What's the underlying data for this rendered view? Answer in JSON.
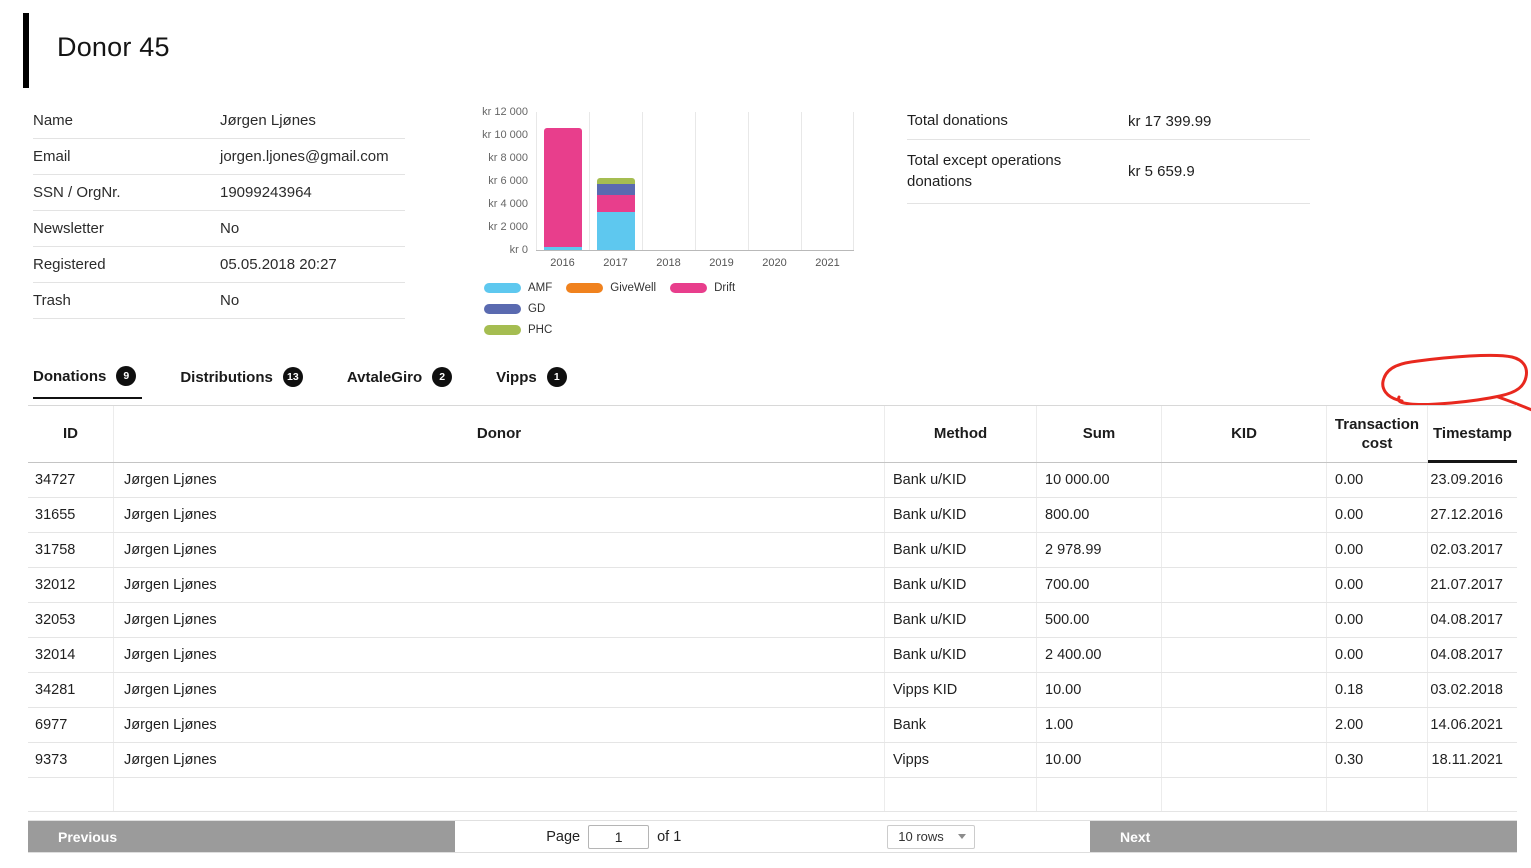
{
  "page": {
    "title": "Donor 45"
  },
  "info": {
    "rows": [
      {
        "label": "Name",
        "value": "Jørgen Ljønes"
      },
      {
        "label": "Email",
        "value": "jorgen.ljones@gmail.com"
      },
      {
        "label": "SSN / OrgNr.",
        "value": "19099243964"
      },
      {
        "label": "Newsletter",
        "value": "No"
      },
      {
        "label": "Registered",
        "value": "05.05.2018 20:27"
      },
      {
        "label": "Trash",
        "value": "No"
      }
    ]
  },
  "totals": {
    "rows": [
      {
        "label": "Total donations",
        "value": "kr 17 399.99"
      },
      {
        "label": "Total except operations donations",
        "value": "kr 5 659.9"
      }
    ]
  },
  "chart_data": {
    "type": "bar",
    "stacked": true,
    "title": "",
    "categories": [
      "2016",
      "2017",
      "2018",
      "2019",
      "2020",
      "2021"
    ],
    "series": [
      {
        "name": "AMF",
        "color": "#5ec8ef",
        "values": [
          300,
          3300,
          0,
          0,
          0,
          11
        ]
      },
      {
        "name": "GiveWell",
        "color": "#f0821e",
        "values": [
          0,
          0,
          0,
          0,
          0,
          0
        ]
      },
      {
        "name": "Drift",
        "color": "#e83e8c",
        "values": [
          10300,
          1500,
          10,
          0,
          0,
          0
        ]
      },
      {
        "name": "GD",
        "color": "#5a6ab0",
        "values": [
          0,
          900,
          0,
          0,
          0,
          0
        ]
      },
      {
        "name": "PHC",
        "color": "#a5bd51",
        "values": [
          0,
          600,
          0,
          0,
          0,
          0
        ]
      }
    ],
    "ymax": 12000,
    "yticks": [
      "kr 12 000",
      "kr 10 000",
      "kr 8 000",
      "kr 6 000",
      "kr 4 000",
      "kr 2 000",
      "kr 0"
    ],
    "legend_position": "bottom",
    "grid": "vertical"
  },
  "tabs": [
    {
      "label": "Donations",
      "count": "9",
      "active": true
    },
    {
      "label": "Distributions",
      "count": "13",
      "active": false
    },
    {
      "label": "AvtaleGiro",
      "count": "2",
      "active": false
    },
    {
      "label": "Vipps",
      "count": "1",
      "active": false
    }
  ],
  "table": {
    "columns": [
      "ID",
      "Donor",
      "Method",
      "Sum",
      "KID",
      "Transaction cost",
      "Timestamp"
    ],
    "rows": [
      {
        "id": "34727",
        "donor": "Jørgen Ljønes",
        "method": "Bank u/KID",
        "sum": "10 000.00",
        "kid": "",
        "cost": "0.00",
        "timestamp": "23.09.2016"
      },
      {
        "id": "31655",
        "donor": "Jørgen Ljønes",
        "method": "Bank u/KID",
        "sum": "800.00",
        "kid": "",
        "cost": "0.00",
        "timestamp": "27.12.2016"
      },
      {
        "id": "31758",
        "donor": "Jørgen Ljønes",
        "method": "Bank u/KID",
        "sum": "2 978.99",
        "kid": "",
        "cost": "0.00",
        "timestamp": "02.03.2017"
      },
      {
        "id": "32012",
        "donor": "Jørgen Ljønes",
        "method": "Bank u/KID",
        "sum": "700.00",
        "kid": "",
        "cost": "0.00",
        "timestamp": "21.07.2017"
      },
      {
        "id": "32053",
        "donor": "Jørgen Ljønes",
        "method": "Bank u/KID",
        "sum": "500.00",
        "kid": "",
        "cost": "0.00",
        "timestamp": "04.08.2017"
      },
      {
        "id": "32014",
        "donor": "Jørgen Ljønes",
        "method": "Bank u/KID",
        "sum": "2 400.00",
        "kid": "",
        "cost": "0.00",
        "timestamp": "04.08.2017"
      },
      {
        "id": "34281",
        "donor": "Jørgen Ljønes",
        "method": "Vipps KID",
        "sum": "10.00",
        "kid": "",
        "cost": "0.18",
        "timestamp": "03.02.2018"
      },
      {
        "id": "6977",
        "donor": "Jørgen Ljønes",
        "method": "Bank",
        "sum": "1.00",
        "kid": "",
        "cost": "2.00",
        "timestamp": "14.06.2021"
      },
      {
        "id": "9373",
        "donor": "Jørgen Ljønes",
        "method": "Vipps",
        "sum": "10.00",
        "kid": "",
        "cost": "0.30",
        "timestamp": "18.11.2021"
      }
    ]
  },
  "footer": {
    "previous": "Previous",
    "page_label": "Page",
    "page_value": "1",
    "of_label": "of 1",
    "rows_select": "10 rows",
    "next": "Next"
  },
  "annotation": {
    "color": "#e8281e"
  }
}
